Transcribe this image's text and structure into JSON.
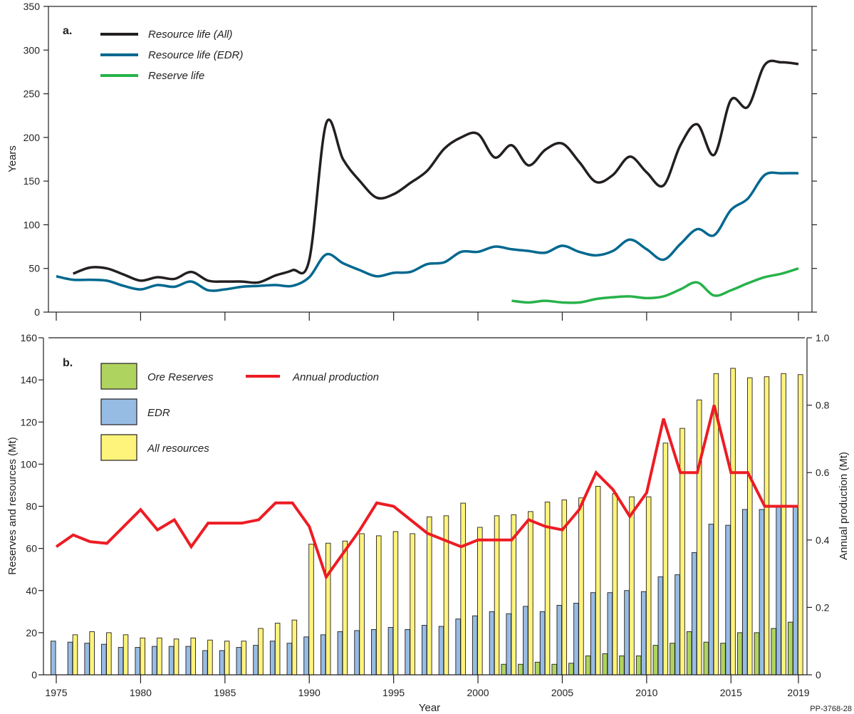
{
  "figure_id": "PP-3768-28",
  "chart_data": [
    {
      "type": "line",
      "panel_label": "a.",
      "title": "",
      "xlabel": "",
      "ylabel": "Years",
      "xlim": [
        1975,
        2019
      ],
      "ylim": [
        0,
        350
      ],
      "yticks": [
        0,
        50,
        100,
        150,
        200,
        250,
        300,
        350
      ],
      "xticks": [
        1975,
        1980,
        1985,
        1990,
        1995,
        2000,
        2005,
        2010,
        2015,
        2019
      ],
      "grid": false,
      "legend_position": "top-left",
      "series": [
        {
          "name": "Resource life (All)",
          "color": "#231f20",
          "x": [
            1976,
            1977,
            1978,
            1979,
            1980,
            1981,
            1982,
            1983,
            1984,
            1985,
            1986,
            1987,
            1988,
            1989,
            1990,
            1991,
            1992,
            1993,
            1994,
            1995,
            1996,
            1997,
            1998,
            1999,
            2000,
            2001,
            2002,
            2003,
            2004,
            2005,
            2006,
            2007,
            2008,
            2009,
            2010,
            2011,
            2012,
            2013,
            2014,
            2015,
            2016,
            2017,
            2018,
            2019
          ],
          "values": [
            44,
            51,
            50,
            43,
            36,
            40,
            38,
            46,
            36,
            35,
            35,
            34,
            42,
            48,
            60,
            216,
            175,
            150,
            131,
            135,
            148,
            162,
            187,
            200,
            204,
            177,
            191,
            168,
            186,
            193,
            172,
            149,
            157,
            178,
            160,
            145,
            191,
            215,
            180,
            243,
            235,
            283,
            286,
            284
          ]
        },
        {
          "name": "Resource life (EDR)",
          "color": "#00688f",
          "x": [
            1975,
            1976,
            1977,
            1978,
            1979,
            1980,
            1981,
            1982,
            1983,
            1984,
            1985,
            1986,
            1987,
            1988,
            1989,
            1990,
            1991,
            1992,
            1993,
            1994,
            1995,
            1996,
            1997,
            1998,
            1999,
            2000,
            2001,
            2002,
            2003,
            2004,
            2005,
            2006,
            2007,
            2008,
            2009,
            2010,
            2011,
            2012,
            2013,
            2014,
            2015,
            2016,
            2017,
            2018,
            2019
          ],
          "values": [
            41,
            37,
            37,
            36,
            30,
            26,
            31,
            29,
            35,
            25,
            26,
            29,
            30,
            31,
            30,
            40,
            66,
            56,
            48,
            41,
            45,
            46,
            55,
            57,
            69,
            69,
            75,
            72,
            70,
            68,
            76,
            69,
            65,
            70,
            83,
            72,
            60,
            78,
            95,
            88,
            117,
            130,
            157,
            159,
            159
          ]
        },
        {
          "name": "Reserve life",
          "color": "#27b24a",
          "x": [
            2002,
            2003,
            2004,
            2005,
            2006,
            2007,
            2008,
            2009,
            2010,
            2011,
            2012,
            2013,
            2014,
            2015,
            2016,
            2017,
            2018,
            2019
          ],
          "values": [
            13,
            11,
            13,
            11,
            11,
            15,
            17,
            18,
            16,
            18,
            26,
            34,
            19,
            25,
            33,
            40,
            44,
            50
          ]
        }
      ]
    },
    {
      "type": "bar",
      "panel_label": "b.",
      "title": "",
      "xlabel": "Year",
      "ylabel": "Reserves and resources (Mt)",
      "y2label": "Annual production (Mt)",
      "xlim": [
        1975,
        2019
      ],
      "ylim": [
        0,
        160
      ],
      "y2lim": [
        0,
        1.0
      ],
      "yticks": [
        0,
        20,
        40,
        60,
        80,
        100,
        120,
        140,
        160
      ],
      "y2ticks": [
        "0",
        "0.2",
        "0.4",
        "0.6",
        "0.8",
        "1.0"
      ],
      "xticks": [
        1975,
        1980,
        1985,
        1990,
        1995,
        2000,
        2005,
        2010,
        2015,
        2019
      ],
      "grid": false,
      "legend_position": "top-left",
      "categories": [
        1975,
        1976,
        1977,
        1978,
        1979,
        1980,
        1981,
        1982,
        1983,
        1984,
        1985,
        1986,
        1987,
        1988,
        1989,
        1990,
        1991,
        1992,
        1993,
        1994,
        1995,
        1996,
        1997,
        1998,
        1999,
        2000,
        2001,
        2002,
        2003,
        2004,
        2005,
        2006,
        2007,
        2008,
        2009,
        2010,
        2011,
        2012,
        2013,
        2014,
        2015,
        2016,
        2017,
        2018,
        2019
      ],
      "series": [
        {
          "name": "Ore Reserves",
          "type": "bar",
          "axis": "left",
          "color": "#afd35f",
          "values": [
            null,
            null,
            null,
            null,
            null,
            null,
            null,
            null,
            null,
            null,
            null,
            null,
            null,
            null,
            null,
            null,
            null,
            null,
            null,
            null,
            null,
            null,
            null,
            null,
            null,
            null,
            null,
            5,
            5,
            6,
            5,
            5.5,
            9,
            10,
            9,
            9,
            14,
            15,
            20.5,
            15.5,
            15,
            20,
            20,
            22,
            25
          ]
        },
        {
          "name": "EDR",
          "type": "bar",
          "axis": "left",
          "color": "#97bce4",
          "values": [
            16,
            15.5,
            15,
            14.5,
            13,
            13,
            13.5,
            13.5,
            13.5,
            11.5,
            11.5,
            13,
            14,
            16,
            15,
            18,
            19,
            20.5,
            21,
            21.5,
            22.5,
            21.5,
            23.5,
            23,
            26.5,
            28,
            30,
            29,
            32.5,
            30,
            33,
            34,
            39,
            39,
            40,
            39.5,
            46.5,
            47.5,
            58,
            71.5,
            71,
            78.5,
            78.5,
            80,
            80
          ]
        },
        {
          "name": "All resources",
          "type": "bar",
          "axis": "left",
          "color": "#fff47b",
          "values": [
            null,
            19,
            20.5,
            20,
            19,
            17.5,
            17.5,
            17,
            17.5,
            16.5,
            16,
            16,
            22,
            24.5,
            26,
            62,
            62.5,
            63.5,
            67,
            66,
            68,
            67,
            75,
            75.5,
            81.5,
            70,
            75.5,
            76,
            77.5,
            82,
            83,
            84,
            89.5,
            86,
            84.5,
            84.5,
            110,
            117,
            130.5,
            143,
            145.5,
            141,
            141.5,
            143,
            142.5
          ]
        },
        {
          "name": "Annual production",
          "type": "line",
          "axis": "right",
          "color": "#ed1c24",
          "values": [
            0.38,
            0.415,
            0.395,
            0.39,
            0.44,
            0.49,
            0.43,
            0.46,
            0.38,
            0.45,
            0.45,
            0.45,
            0.46,
            0.51,
            0.51,
            0.44,
            0.29,
            0.36,
            0.43,
            0.51,
            0.5,
            0.46,
            0.42,
            0.4,
            0.38,
            0.4,
            0.4,
            0.4,
            0.46,
            0.44,
            0.43,
            0.49,
            0.6,
            0.55,
            0.47,
            0.54,
            0.76,
            0.6,
            0.6,
            0.8,
            0.6,
            0.6,
            0.5,
            0.5,
            0.5
          ]
        }
      ]
    }
  ]
}
